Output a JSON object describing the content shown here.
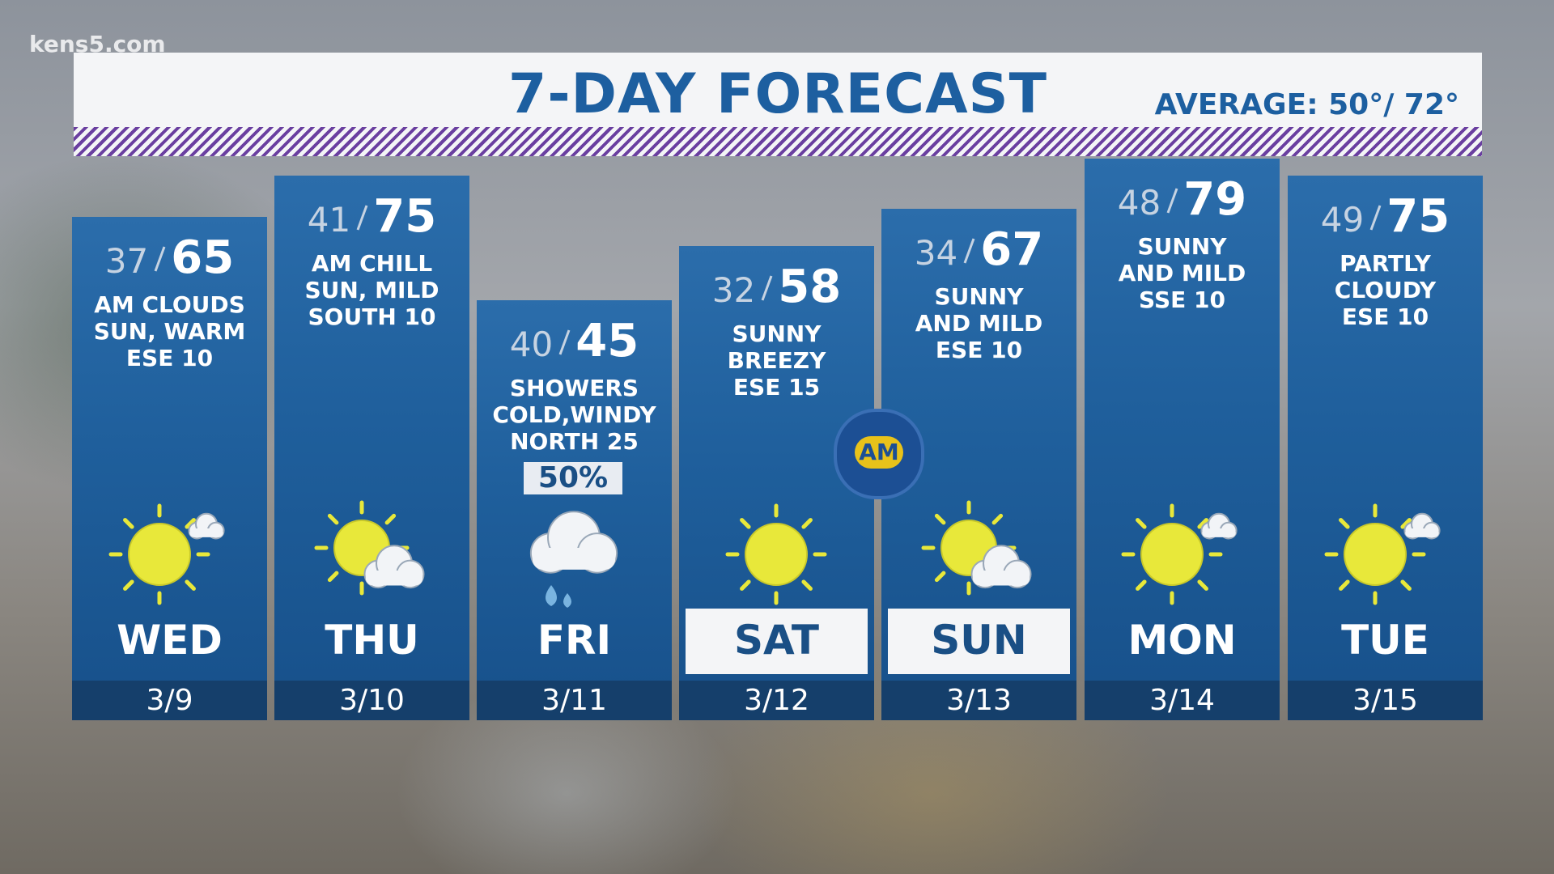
{
  "logo": "kens5.com",
  "header": {
    "title": "7-DAY FORECAST",
    "average": "AVERAGE: 50°/ 72°"
  },
  "bug": "AM",
  "days": [
    {
      "day": "WED",
      "date": "3/9",
      "low": 37,
      "high": 65,
      "lines": [
        "AM CLOUDS",
        "SUN, WARM",
        "ESE 10"
      ]
    },
    {
      "day": "THU",
      "date": "3/10",
      "low": 41,
      "high": 75,
      "lines": [
        "AM CHILL",
        "SUN, MILD",
        "SOUTH 10"
      ]
    },
    {
      "day": "FRI",
      "date": "3/11",
      "low": 40,
      "high": 45,
      "lines": [
        "SHOWERS",
        "COLD,WINDY",
        "NORTH 25"
      ],
      "precip": "50%"
    },
    {
      "day": "SAT",
      "date": "3/12",
      "low": 32,
      "high": 58,
      "lines": [
        "SUNNY",
        "BREEZY",
        "ESE 15"
      ]
    },
    {
      "day": "SUN",
      "date": "3/13",
      "low": 34,
      "high": 67,
      "lines": [
        "SUNNY",
        "AND MILD",
        "ESE 10"
      ]
    },
    {
      "day": "MON",
      "date": "3/14",
      "low": 48,
      "high": 79,
      "lines": [
        "SUNNY",
        "AND MILD",
        "SSE 10"
      ]
    },
    {
      "day": "TUE",
      "date": "3/15",
      "low": 49,
      "high": 75,
      "lines": [
        "PARTLY",
        "CLOUDY",
        "ESE 10"
      ]
    }
  ]
}
